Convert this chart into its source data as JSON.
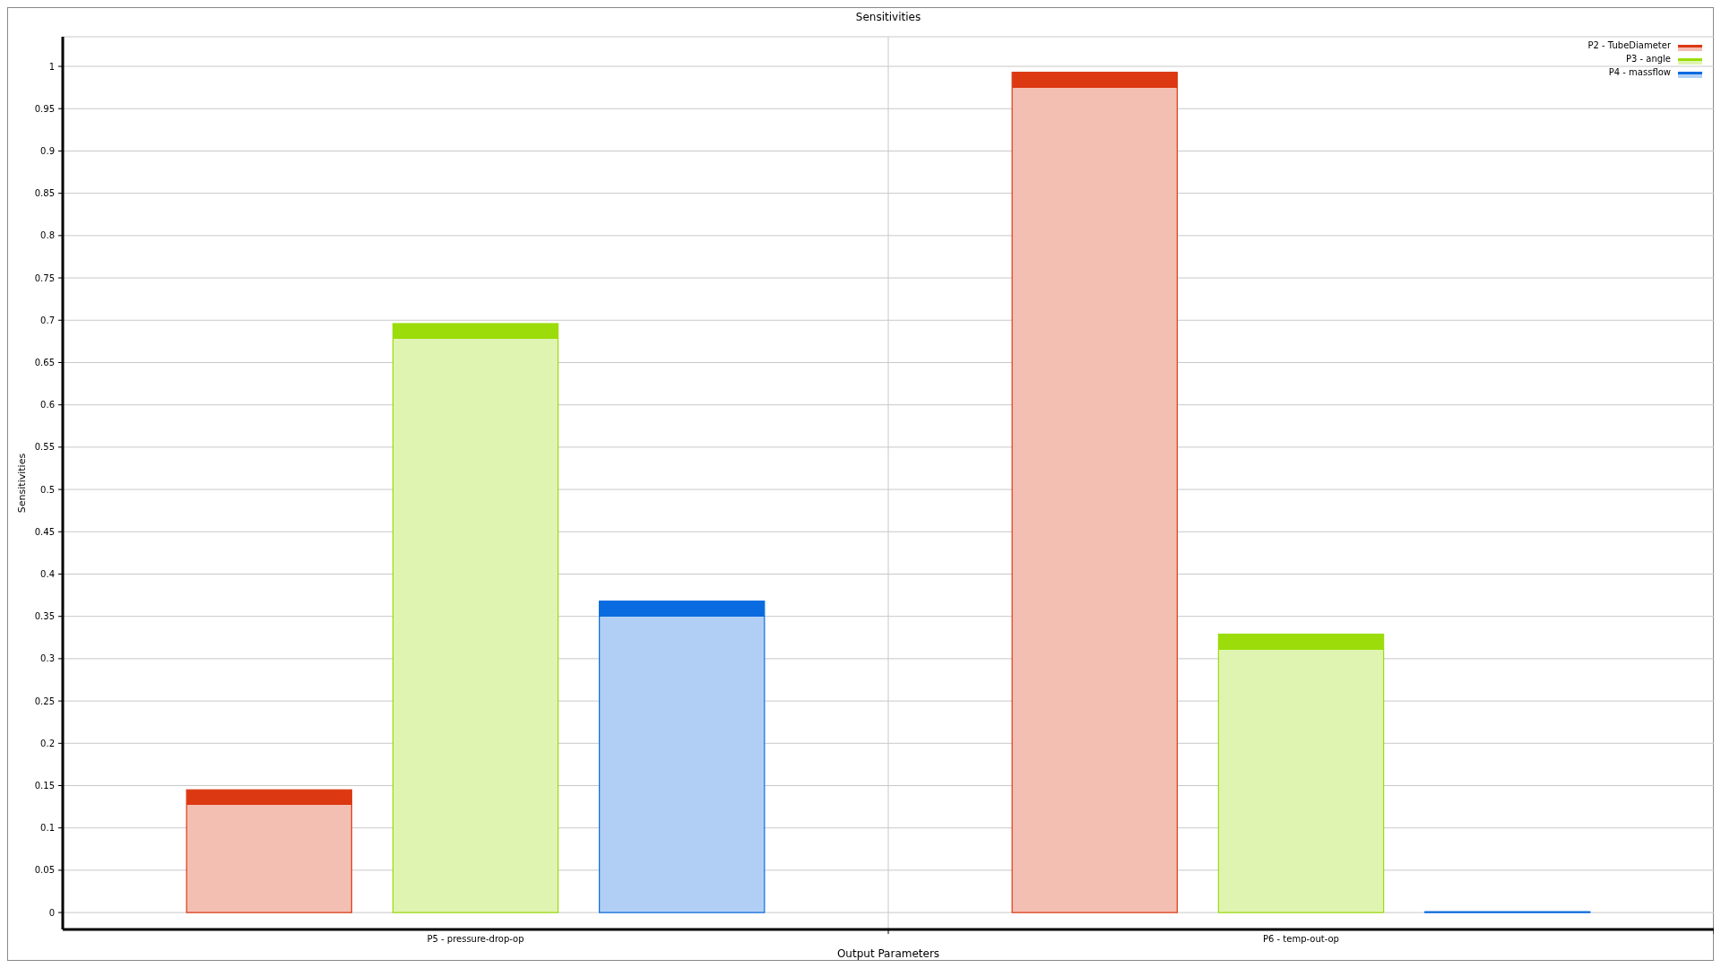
{
  "chart_data": {
    "type": "bar",
    "title": "Sensitivities",
    "xlabel": "Output Parameters",
    "ylabel": "Sensitivities",
    "categories": [
      "P5 - pressure-drop-op",
      "P6 - temp-out-op"
    ],
    "series": [
      {
        "name": "P2 - TubeDiameter",
        "color": "#dc3812",
        "values": [
          0.145,
          0.993
        ]
      },
      {
        "name": "P3 - angle",
        "color": "#9bdc0a",
        "values": [
          0.696,
          0.329
        ]
      },
      {
        "name": "P4 - massflow",
        "color": "#0a6ae0",
        "values": [
          0.368,
          0.001
        ]
      }
    ],
    "ylim": [
      -0.02,
      1.035
    ],
    "yticks": [
      0,
      0.05,
      0.1,
      0.15,
      0.2,
      0.25,
      0.3,
      0.35,
      0.4,
      0.45,
      0.5,
      0.55,
      0.6,
      0.65,
      0.7,
      0.75,
      0.8,
      0.85,
      0.9,
      0.95,
      1
    ],
    "grid": true,
    "legend": "top right"
  }
}
